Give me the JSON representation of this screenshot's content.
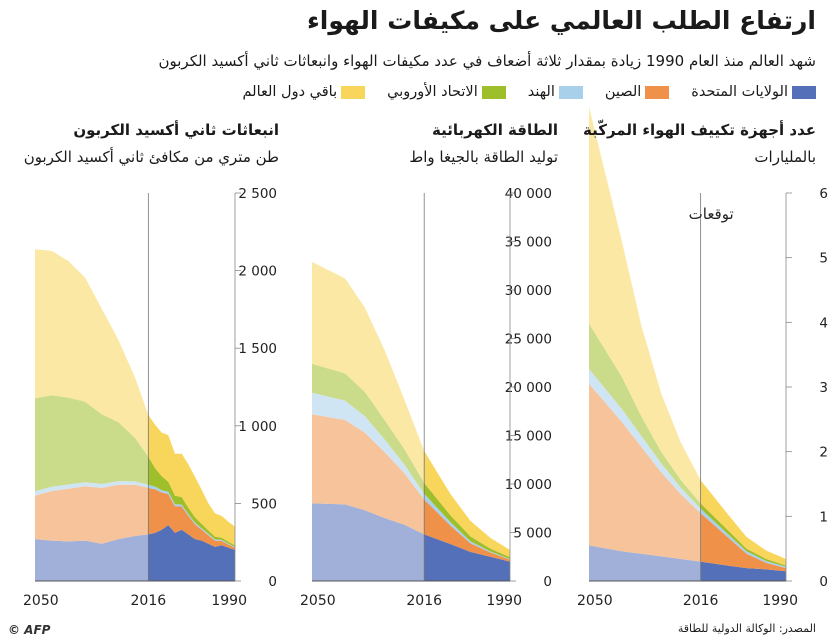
{
  "header": {
    "title": "ارتفاع الطلب العالمي على مكيفات الهواء",
    "subtitle": "شهد العالم منذ العام 1990 زيادة بمقدار ثلاثة أضعاف في عدد مكيفات الهواء وانبعاثات ثاني أكسيد الكربون"
  },
  "legend": [
    {
      "label": "الولايات المتحدة",
      "color": "#5470b8"
    },
    {
      "label": "الصين",
      "color": "#f0914a"
    },
    {
      "label": "الهند",
      "color": "#a8d0eb"
    },
    {
      "label": "الاتحاد الأوروبي",
      "color": "#9fbf2a"
    },
    {
      "label": "باقي دول العالم",
      "color": "#f8d65c"
    }
  ],
  "footer": {
    "source": "المصدر: الوكالة الدولية للطاقة",
    "logo": "© AFP"
  },
  "chart_data": [
    {
      "type": "area",
      "title": "عدد أجهزة تكييف الهواء المركّبة",
      "subtitle": "بالمليارات",
      "annotation": "توقعات",
      "x_ticks": [
        "1990",
        "2016",
        "2050"
      ],
      "y_ticks": [
        "0",
        "1",
        "2",
        "3",
        "4",
        "5",
        "6"
      ],
      "ylim": [
        0,
        6
      ],
      "divider_year": 2016,
      "x": [
        1990,
        1996,
        2002,
        2008,
        2016,
        2022,
        2028,
        2034,
        2040,
        2050
      ],
      "series": [
        {
          "name": "الولايات المتحدة",
          "values": [
            0.15,
            0.18,
            0.2,
            0.24,
            0.3,
            0.34,
            0.38,
            0.42,
            0.46,
            0.55
          ]
        },
        {
          "name": "الصين",
          "values": [
            0.05,
            0.1,
            0.22,
            0.45,
            0.75,
            1.0,
            1.3,
            1.65,
            2.0,
            2.5
          ]
        },
        {
          "name": "الهند",
          "values": [
            0.02,
            0.03,
            0.04,
            0.05,
            0.07,
            0.1,
            0.14,
            0.17,
            0.2,
            0.23
          ]
        },
        {
          "name": "الاتحاد الأوروبي",
          "values": [
            0.02,
            0.03,
            0.04,
            0.06,
            0.08,
            0.12,
            0.18,
            0.3,
            0.5,
            0.7
          ]
        },
        {
          "name": "باقي دول العالم",
          "values": [
            0.1,
            0.13,
            0.18,
            0.25,
            0.36,
            0.58,
            0.9,
            1.4,
            2.1,
            3.35
          ]
        }
      ]
    },
    {
      "type": "area",
      "title": "الطاقة الكهربائية",
      "subtitle": "توليد الطاقة بالجيغا واط",
      "x_ticks": [
        "1990",
        "2016",
        "2050"
      ],
      "y_ticks": [
        "0",
        "5 000",
        "10 000",
        "15 000",
        "20 000",
        "25 000",
        "30 000",
        "35 000",
        "40 000"
      ],
      "ylim": [
        0,
        40000
      ],
      "divider_year": 2016,
      "x": [
        1990,
        1996,
        2002,
        2008,
        2016,
        2022,
        2028,
        2034,
        2040,
        2050
      ],
      "series": [
        {
          "name": "الولايات المتحدة",
          "values": [
            2000,
            2500,
            3000,
            3800,
            4800,
            5800,
            6500,
            7300,
            7900,
            8000
          ]
        },
        {
          "name": "الصين",
          "values": [
            200,
            450,
            900,
            1900,
            3600,
            5300,
            6800,
            8000,
            8700,
            9200
          ]
        },
        {
          "name": "الهند",
          "values": [
            50,
            100,
            200,
            350,
            600,
            900,
            1300,
            1700,
            2000,
            2200
          ]
        },
        {
          "name": "الاتحاد الأوروبي",
          "values": [
            200,
            300,
            500,
            700,
            1100,
            1600,
            2000,
            2500,
            2800,
            3000
          ]
        },
        {
          "name": "باقي دول العالم",
          "values": [
            750,
            1100,
            1600,
            2200,
            3300,
            5100,
            7200,
            8700,
            9800,
            10500
          ]
        }
      ]
    },
    {
      "type": "area",
      "title": "انبعاثات ثاني أكسيد الكربون",
      "subtitle": "طن متري من مكافئ ثاني أكسيد الكربون",
      "x_ticks": [
        "1990",
        "2016",
        "2050"
      ],
      "y_ticks": [
        "0",
        "500",
        "1 000",
        "1 500",
        "2 000",
        "2 500"
      ],
      "ylim": [
        0,
        2500
      ],
      "divider_year": 2016,
      "x": [
        1990,
        1992,
        1994,
        1996,
        1998,
        2000,
        2002,
        2004,
        2006,
        2008,
        2010,
        2012,
        2014,
        2016,
        2020,
        2025,
        2030,
        2035,
        2040,
        2045,
        2050
      ],
      "series": [
        {
          "name": "الولايات المتحدة",
          "values": [
            200,
            215,
            230,
            220,
            240,
            260,
            270,
            300,
            330,
            310,
            360,
            330,
            310,
            300,
            290,
            270,
            240,
            260,
            255,
            260,
            270
          ]
        },
        {
          "name": "الصين",
          "values": [
            15,
            20,
            28,
            40,
            55,
            70,
            95,
            120,
            150,
            170,
            200,
            240,
            280,
            300,
            330,
            350,
            360,
            350,
            340,
            320,
            280
          ]
        },
        {
          "name": "الهند",
          "values": [
            5,
            6,
            7,
            8,
            9,
            10,
            11,
            12,
            13,
            14,
            15,
            16,
            18,
            20,
            22,
            24,
            25,
            26,
            27,
            27,
            28
          ]
        },
        {
          "name": "الاتحاد الأوروبي",
          "values": [
            10,
            12,
            14,
            18,
            22,
            28,
            35,
            40,
            48,
            55,
            65,
            90,
            120,
            180,
            280,
            380,
            450,
            520,
            560,
            590,
            600
          ]
        },
        {
          "name": "باقي دول العالم",
          "values": [
            120,
            130,
            140,
            150,
            175,
            220,
            260,
            280,
            280,
            270,
            300,
            280,
            280,
            270,
            390,
            530,
            680,
            800,
            880,
            930,
            960
          ]
        }
      ]
    }
  ]
}
